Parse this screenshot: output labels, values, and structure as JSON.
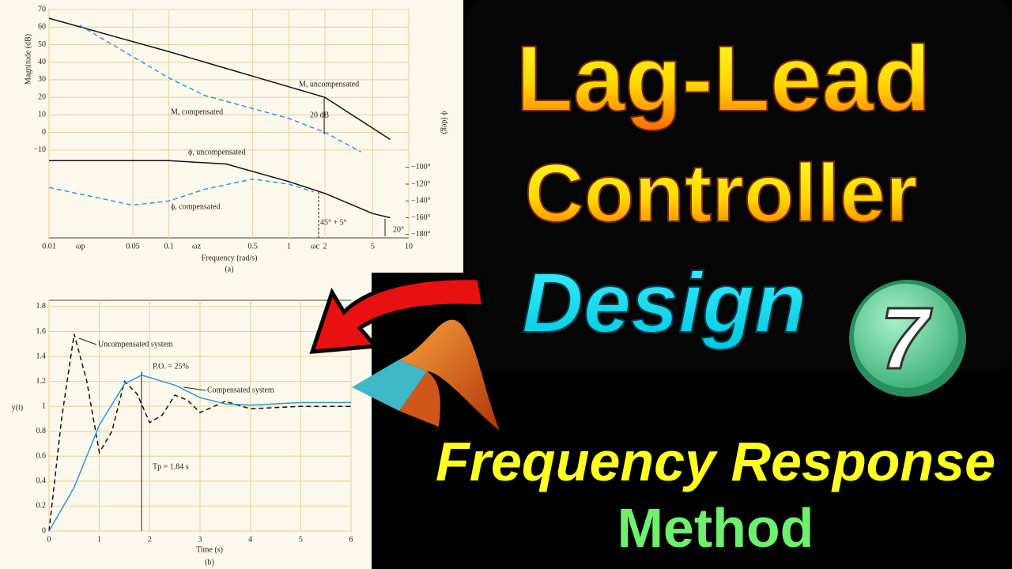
{
  "chart_data": [
    {
      "type": "line",
      "xscale": "log",
      "xlabel": "Frequency (rad/s)",
      "ylabel": "Magnitude (dB)",
      "y2label": "ϕ (deg)",
      "caption": "(a)",
      "xlim": [
        0.01,
        10
      ],
      "xticks": [
        0.01,
        0.05,
        0.1,
        0.5,
        1,
        2,
        5,
        10
      ],
      "ylim": [
        -60,
        70
      ],
      "yticks": [
        70,
        60,
        50,
        40,
        30,
        20,
        10,
        0,
        {
          "value": -10,
          "label": "−10"
        }
      ],
      "y2lim": [
        -184,
        88
      ],
      "y2ticks": [
        {
          "value": -100,
          "label": "−100°"
        },
        {
          "value": -120,
          "label": "−120°"
        },
        {
          "value": -140,
          "label": "−140°"
        },
        {
          "value": -160,
          "label": "−160°"
        },
        {
          "value": -180,
          "label": "−180°"
        }
      ],
      "grid": true,
      "series": [
        {
          "name": "M, uncompensated",
          "color": "#111111",
          "dash": false,
          "x": [
            0.01,
            0.1,
            1,
            2,
            7
          ],
          "values": [
            65,
            46,
            26,
            20,
            -4
          ]
        },
        {
          "name": "M, compensated",
          "color": "#2a9ad8",
          "dash": true,
          "x": [
            0.018,
            0.1,
            0.2,
            1,
            2,
            4
          ],
          "values": [
            61,
            31,
            21,
            8,
            0,
            -11
          ]
        },
        {
          "name": "ϕ, uncompensated",
          "color": "#111111",
          "dash": false,
          "axis": "y2",
          "x": [
            0.01,
            0.1,
            0.3,
            1,
            2,
            5,
            7
          ],
          "values": [
            -92,
            -92,
            -96,
            -117,
            -131,
            -155,
            -160
          ]
        },
        {
          "name": "ϕ, compensated",
          "color": "#2a9ad8",
          "dash": true,
          "axis": "y2",
          "x": [
            0.01,
            0.05,
            0.1,
            0.2,
            0.5,
            1,
            1.6
          ],
          "values": [
            -124,
            -145,
            -140,
            -126,
            -114,
            -120,
            -129
          ]
        }
      ],
      "annotations": [
        "20 dB",
        "45° + 5°",
        "20°",
        "ωp",
        "ωz",
        "ωc"
      ]
    },
    {
      "type": "line",
      "xscale": "linear",
      "xlabel": "Time (s)",
      "ylabel": "y(t)",
      "caption": "(b)",
      "xlim": [
        0,
        6
      ],
      "xticks": [
        0,
        1,
        2,
        3,
        4,
        5,
        6
      ],
      "ylim": [
        0,
        1.85
      ],
      "yticks": [
        0,
        0.2,
        0.4,
        0.6,
        0.8,
        1,
        1.2,
        1.4,
        1.6,
        1.8
      ],
      "grid": true,
      "series": [
        {
          "name": "Uncompensated system",
          "color": "#111111",
          "dash": true,
          "x": [
            0,
            0.25,
            0.5,
            0.75,
            1,
            1.25,
            1.5,
            1.75,
            2,
            2.25,
            2.5,
            2.75,
            3,
            3.5,
            4,
            5,
            6
          ],
          "values": [
            0,
            0.9,
            1.58,
            1.2,
            0.63,
            0.8,
            1.2,
            1.1,
            0.87,
            0.93,
            1.09,
            1.05,
            0.95,
            1.04,
            0.98,
            1,
            1
          ]
        },
        {
          "name": "Compensated system",
          "color": "#2a9ad8",
          "dash": false,
          "x": [
            0,
            0.5,
            1,
            1.5,
            1.84,
            2.5,
            3,
            3.5,
            4,
            5,
            6
          ],
          "values": [
            0,
            0.35,
            0.85,
            1.18,
            1.25,
            1.17,
            1.07,
            1.02,
            1.01,
            1.03,
            1.03
          ]
        }
      ],
      "annotations": [
        "P.O. = 25%",
        "Tp = 1.84 s"
      ]
    }
  ],
  "thumbnail": {
    "line1": "Lag-Lead",
    "line2": "Controller",
    "line3": "Design",
    "episode": "7",
    "line4": "Frequency Response",
    "line5": "Method"
  }
}
